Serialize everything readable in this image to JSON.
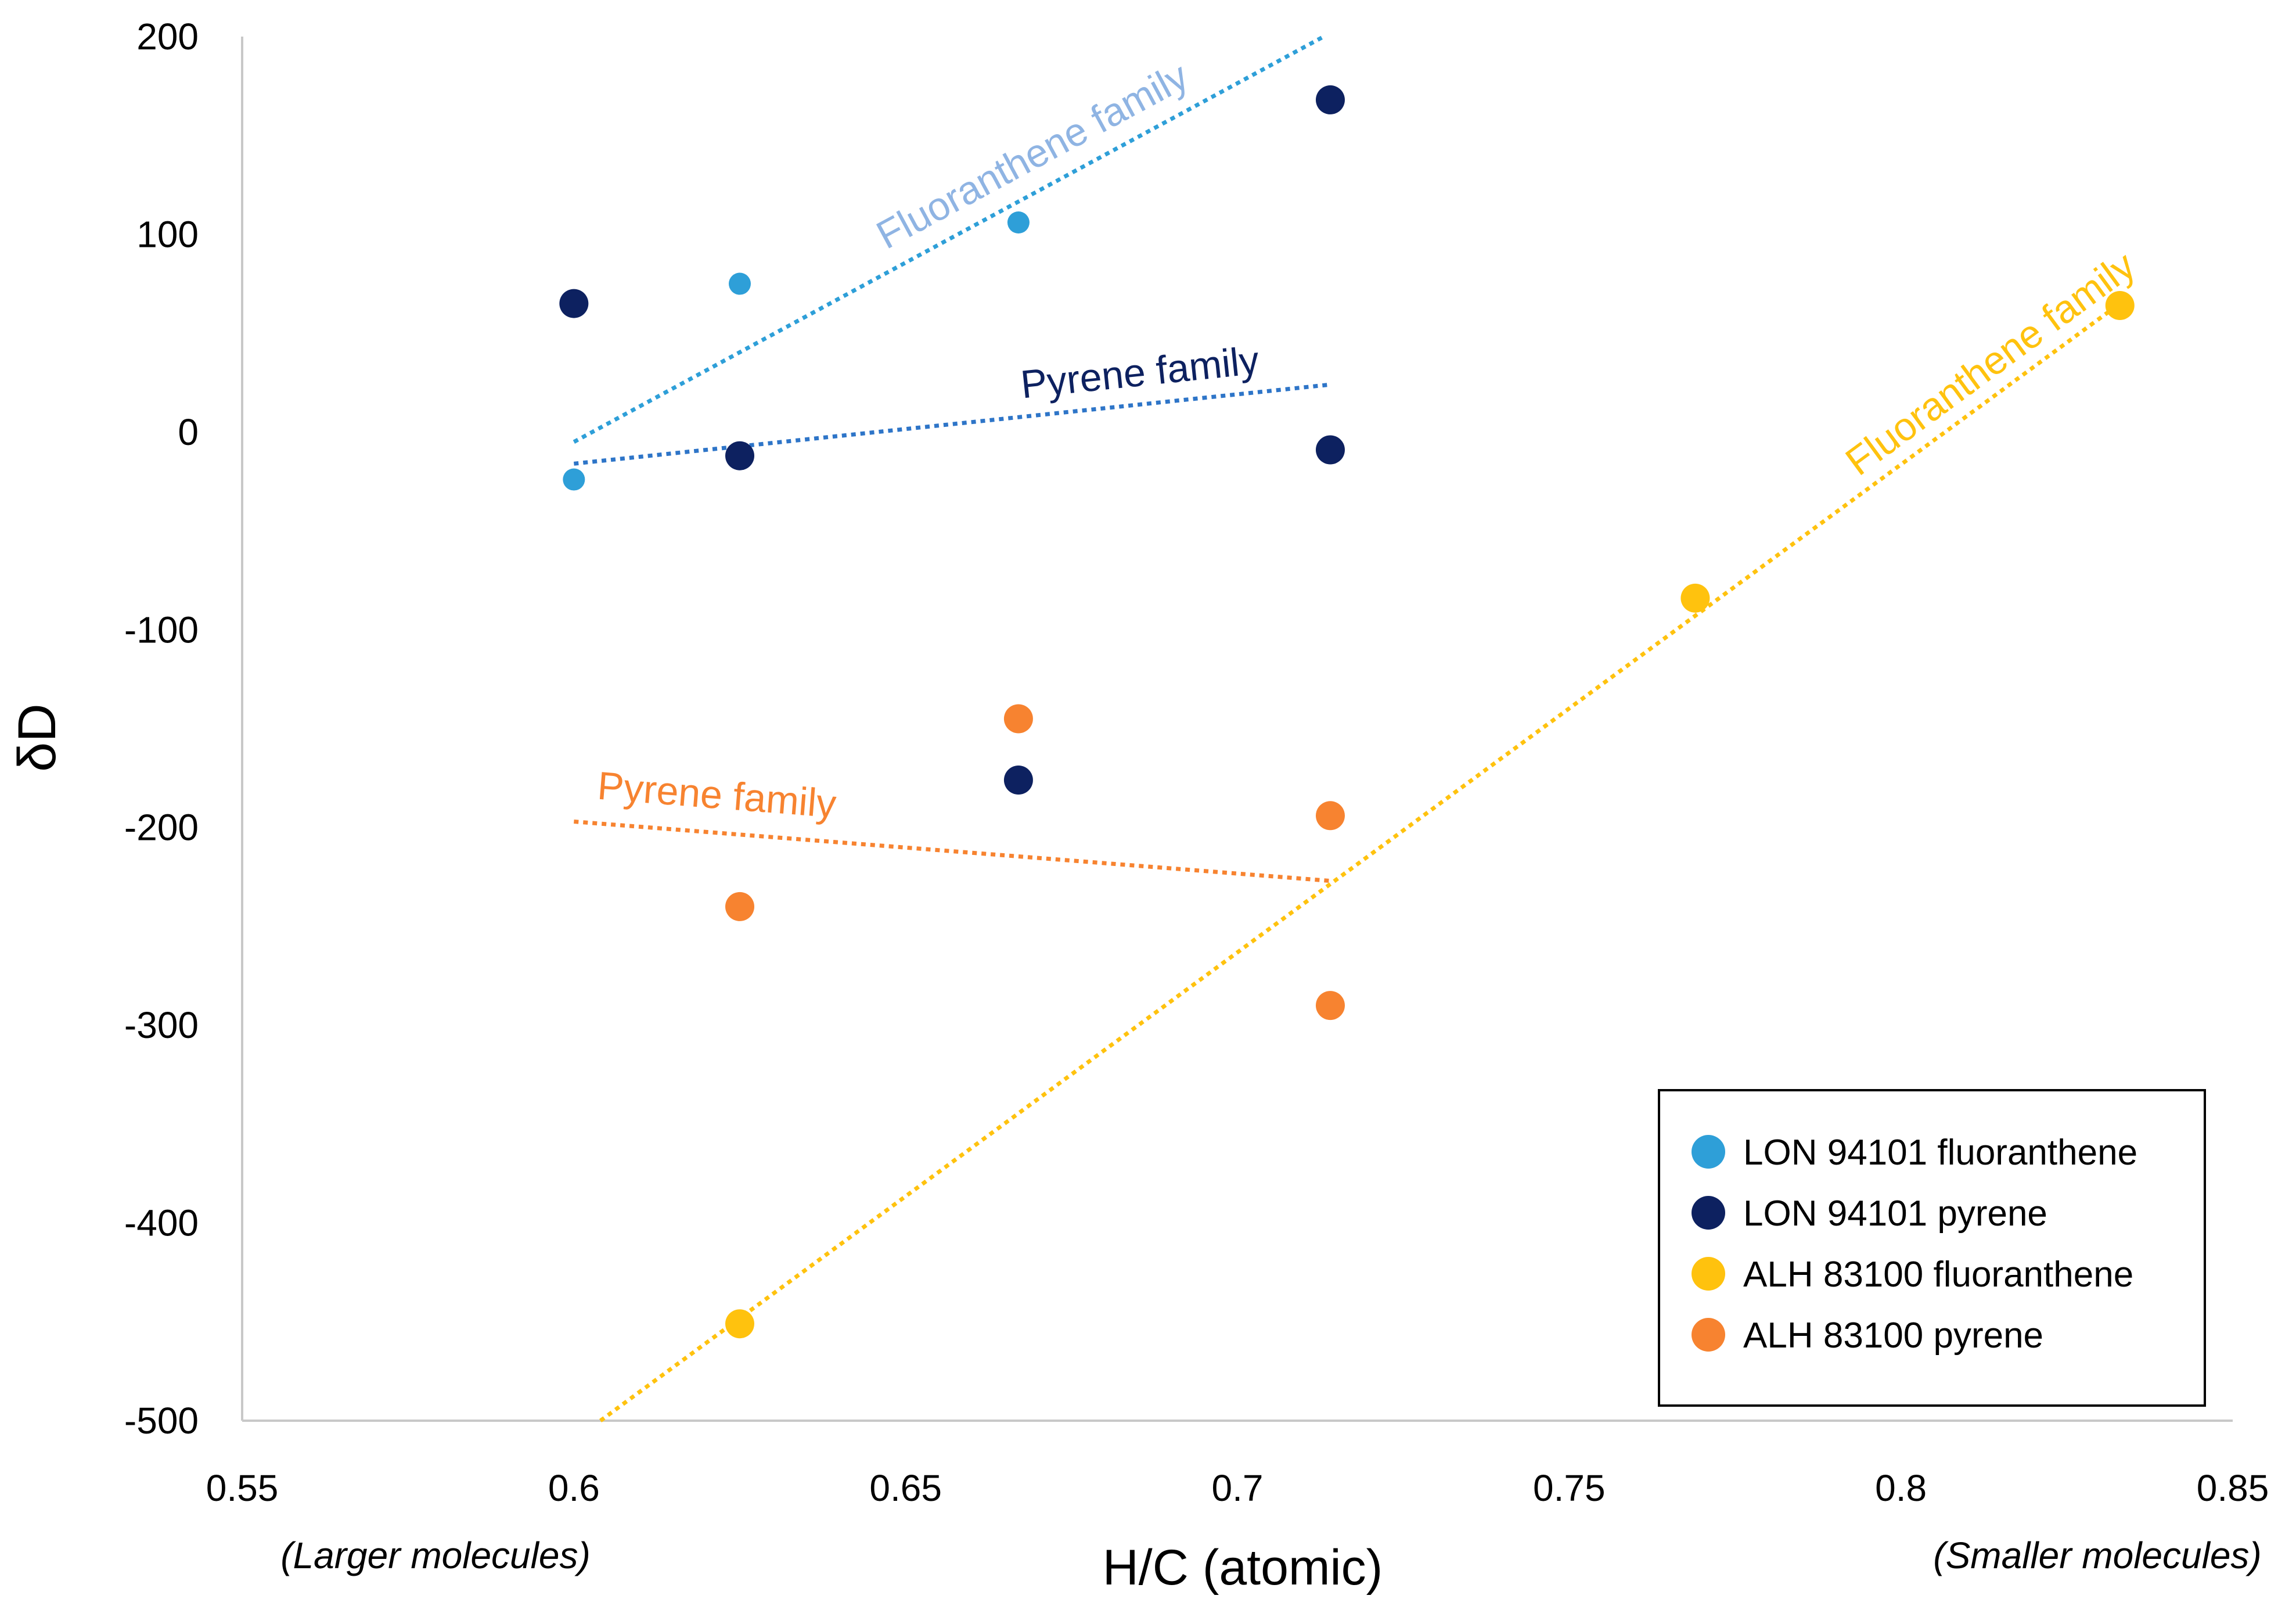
{
  "chart_data": {
    "type": "scatter",
    "title": "",
    "xlabel": "H/C (atomic)",
    "ylabel": "δD",
    "xlim": [
      0.55,
      0.85
    ],
    "ylim": [
      -500,
      200
    ],
    "xticks": [
      "0.55",
      "0.6",
      "0.65",
      "0.7",
      "0.75",
      "0.8",
      "0.85"
    ],
    "yticks": [
      "200",
      "100",
      "0",
      "-100",
      "-200",
      "-300",
      "-400",
      "-500"
    ],
    "x_notes": {
      "left": "(Larger molecules)",
      "right": "(Smaller molecules)"
    },
    "legend_position": "bottom-right",
    "grid": false,
    "series": [
      {
        "name": "LON 94101 fluoranthene",
        "color": "#2e9fd8",
        "marker": "small",
        "points": [
          [
            0.6,
            -24
          ],
          [
            0.625,
            75
          ],
          [
            0.667,
            106
          ]
        ]
      },
      {
        "name": "LON 94101 pyrene",
        "color": "#0d2160",
        "marker": "large",
        "points": [
          [
            0.6,
            65
          ],
          [
            0.625,
            -12
          ],
          [
            0.667,
            -176
          ],
          [
            0.714,
            168
          ],
          [
            0.714,
            -9
          ]
        ]
      },
      {
        "name": "ALH 83100 fluoranthene",
        "color": "#ffc20e",
        "marker": "large",
        "points": [
          [
            0.625,
            -451
          ],
          [
            0.769,
            -84
          ],
          [
            0.833,
            64
          ]
        ]
      },
      {
        "name": "ALH 83100 pyrene",
        "color": "#f78330",
        "marker": "large",
        "points": [
          [
            0.625,
            -240
          ],
          [
            0.667,
            -145
          ],
          [
            0.714,
            -194
          ],
          [
            0.714,
            -290
          ]
        ]
      }
    ],
    "trendlines": [
      {
        "label": "Fluoranthene family",
        "color": "#2e9fd8",
        "label_color": "#8fb4e3",
        "from": [
          0.6,
          -5
        ],
        "to": [
          0.713,
          200
        ]
      },
      {
        "label": "Pyrene family",
        "color": "#2e75c8",
        "label_color": "#0d2160",
        "from": [
          0.6,
          -16
        ],
        "to": [
          0.714,
          24
        ]
      },
      {
        "label": "Pyrene family",
        "color": "#f78330",
        "label_color": "#f78330",
        "from": [
          0.6,
          -197
        ],
        "to": [
          0.714,
          -227
        ]
      },
      {
        "label": "Fluoranthene family",
        "color": "#ffc20e",
        "label_color": "#ffc20e",
        "from": [
          0.604,
          -500
        ],
        "to": [
          0.833,
          65
        ]
      }
    ]
  }
}
